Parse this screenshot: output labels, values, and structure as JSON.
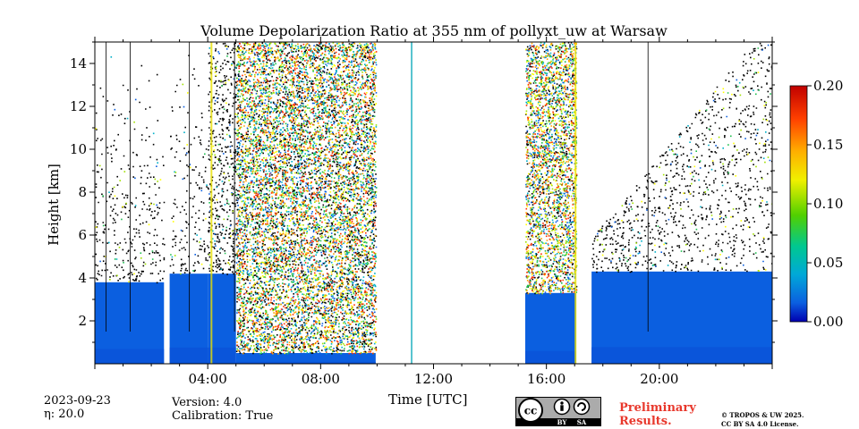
{
  "chart_data": {
    "type": "heatmap",
    "title": "Volume Depolarization Ratio at 355 nm of pollyxt_uw at Warsaw",
    "xlabel": "Time [UTC]",
    "ylabel": "Height [km]",
    "xlim_hours": [
      0,
      24
    ],
    "ylim_km": [
      0.0,
      15.0
    ],
    "x_ticks": [
      {
        "value": 4,
        "label": "04:00"
      },
      {
        "value": 8,
        "label": "08:00"
      },
      {
        "value": 12,
        "label": "12:00"
      },
      {
        "value": 16,
        "label": "16:00"
      },
      {
        "value": 20,
        "label": "20:00"
      }
    ],
    "y_ticks": [
      {
        "value": 2,
        "label": "2"
      },
      {
        "value": 4,
        "label": "4"
      },
      {
        "value": 6,
        "label": "6"
      },
      {
        "value": 8,
        "label": "8"
      },
      {
        "value": 10,
        "label": "10"
      },
      {
        "value": 12,
        "label": "12"
      },
      {
        "value": 14,
        "label": "14"
      }
    ],
    "colorbar": {
      "vmin": 0.0,
      "vmax": 0.2,
      "ticks": [
        {
          "value": 0.0,
          "label": "0.00"
        },
        {
          "value": 0.05,
          "label": "0.05"
        },
        {
          "value": 0.1,
          "label": "0.10"
        },
        {
          "value": 0.15,
          "label": "0.15"
        },
        {
          "value": 0.2,
          "label": "0.20"
        }
      ],
      "colors": [
        "#0000b0",
        "#0b5fe0",
        "#00b0c8",
        "#20c050",
        "#a0e000",
        "#ffff00",
        "#ffa000",
        "#ff3000",
        "#c00000"
      ]
    },
    "segments": [
      {
        "start": 0.0,
        "end": 2.45,
        "base_top_km": 3.8,
        "noise": "low"
      },
      {
        "start": 2.65,
        "end": 4.0,
        "base_top_km": 4.2,
        "noise": "low"
      },
      {
        "start": 4.0,
        "end": 5.0,
        "base_top_km": 4.2,
        "noise": "mid"
      },
      {
        "start": 5.0,
        "end": 9.95,
        "base_top_km": 0.5,
        "noise": "high"
      },
      {
        "start": 15.25,
        "end": 17.05,
        "base_top_km": 3.3,
        "noise": "high"
      },
      {
        "start": 17.6,
        "end": 24.0,
        "base_top_km": 4.3,
        "noise": "rising"
      }
    ],
    "gaps_hours": [
      [
        2.45,
        2.65
      ],
      [
        9.95,
        15.25
      ],
      [
        17.05,
        17.6
      ]
    ]
  },
  "footer": {
    "date": "2023-09-23",
    "eta": "η: 20.0",
    "version": "Version: 4.0",
    "calibration": "Calibration: True",
    "preliminary_line1": "Preliminary",
    "preliminary_line2": "Results.",
    "copyright_line1": "© TROPOS & UW 2025.",
    "copyright_line2": "CC BY SA 4.0 License.",
    "license_badge": {
      "by": "BY",
      "sa": "SA"
    }
  }
}
